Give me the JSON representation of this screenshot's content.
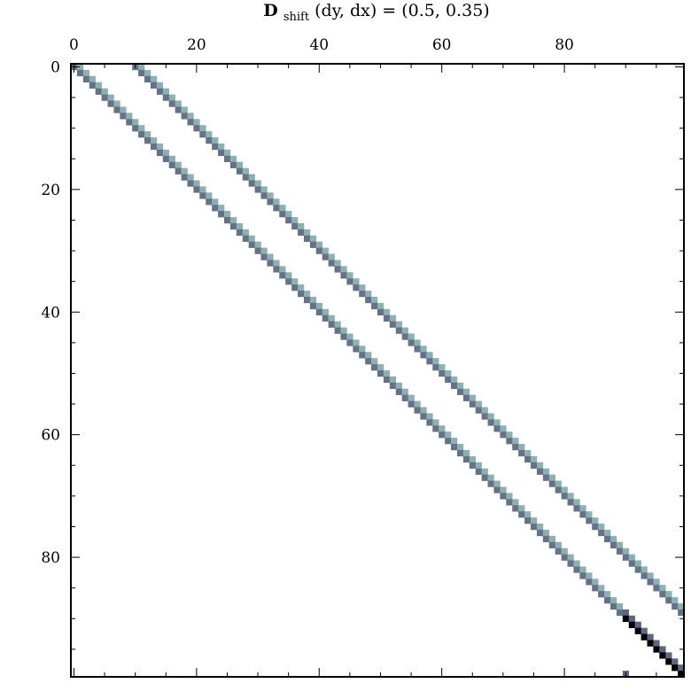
{
  "chart_data": {
    "type": "heatmap",
    "title": {
      "symbol": "D",
      "subscript": "shift",
      "rest": "(dy, dx) = (0.5, 0.35)"
    },
    "matrix_size": 100,
    "x_ticks": [
      0,
      20,
      40,
      60,
      80
    ],
    "y_ticks": [
      0,
      20,
      40,
      60,
      80
    ],
    "x_tick_labels": [
      "0",
      "20",
      "40",
      "60",
      "80"
    ],
    "y_tick_labels": [
      "0",
      "20",
      "40",
      "60",
      "80"
    ],
    "x_axis_position": "top",
    "y_axis_position": "left",
    "grid": false,
    "colormap": "bone_r",
    "diagonals": [
      {
        "offset": 0,
        "weight": 0.325
      },
      {
        "offset": 1,
        "weight": 0.175
      },
      {
        "offset": 10,
        "weight": 0.325
      },
      {
        "offset": 11,
        "weight": 0.175
      }
    ],
    "boundary_block_start": 90
  }
}
